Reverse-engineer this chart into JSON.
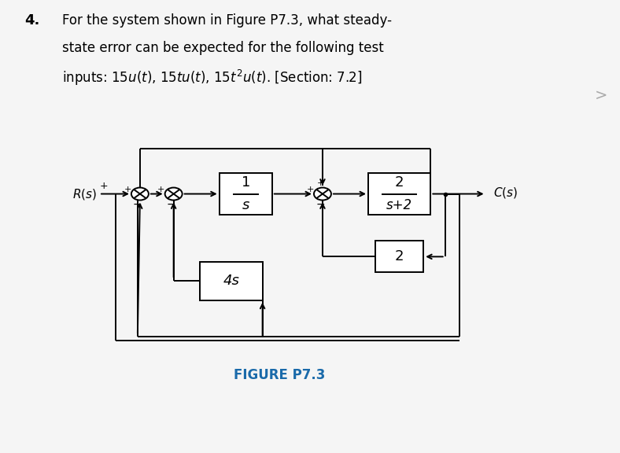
{
  "bg_color": "#f5f5f5",
  "text_color": "#000000",
  "fig_label_color": "#1a6aaa",
  "line_color": "#000000",
  "lw": 1.4,
  "r_sum": 0.018,
  "title_bold": "4.",
  "title_lines": [
    "For the system shown in Figure P7.3, what steady-",
    "state error can be expected for the following test",
    "inputs: 15$u(t)$, 15$tu(t)$, 15$t^2u(t)$. [Section: 7.2]"
  ],
  "figure_label": "FIGURE P7.3",
  "chevron": ">",
  "chevron_color": "#aaaaaa",
  "block_1s_num": "1",
  "block_1s_den": "s",
  "block_2s2_num": "2",
  "block_2s2_den": "s+2",
  "block_2": "2",
  "block_4s": "4s",
  "label_Rs": "$R(s)$",
  "label_Cs": "$C(s)$",
  "plus_sign": "+",
  "minus_sign": "−"
}
